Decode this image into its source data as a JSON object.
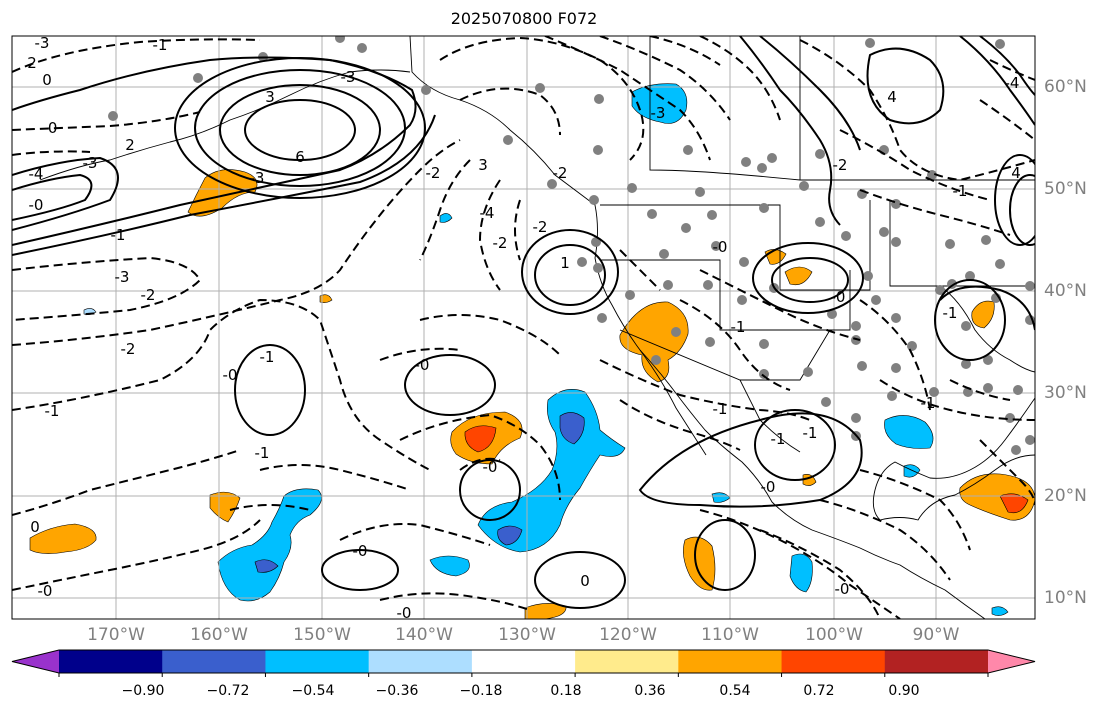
{
  "title": "2025070800 F072",
  "longitude_labels": [
    "170°W",
    "160°W",
    "150°W",
    "140°W",
    "130°W",
    "120°W",
    "110°W",
    "100°W",
    "90°W"
  ],
  "latitude_labels": [
    "60°N",
    "50°N",
    "40°N",
    "30°N",
    "20°N",
    "10°N"
  ],
  "contour_labels": [
    "-3",
    "2",
    "0",
    "-0",
    "-3",
    "-4",
    "6",
    "-0",
    "2",
    "-3",
    "3",
    "-2",
    "-3",
    "-1",
    "-2",
    "-3",
    "-4",
    "4",
    "-1",
    "-0",
    "-1",
    "-0",
    "-2",
    "-2",
    "1",
    "-0",
    "-1",
    "-0",
    "-0",
    "-0",
    "0",
    "-0",
    "0",
    "-1",
    "-1",
    "-1",
    "-2",
    "-0",
    "-0",
    "-1",
    "-1",
    "-0",
    "-2",
    "-1",
    "-1",
    "-1",
    "-2",
    "-3",
    "3",
    "-4",
    "4"
  ],
  "colorbar": {
    "ticks": [
      "−0.90",
      "−0.72",
      "−0.54",
      "−0.36",
      "−0.18",
      "0.18",
      "0.36",
      "0.54",
      "0.72",
      "0.90"
    ],
    "colors": [
      "#9932CC",
      "#00008B",
      "#3A5FCD",
      "#00BFFF",
      "#ADDEFF",
      "#FFFFFF",
      "#FFEB8C",
      "#FFA500",
      "#FF4500",
      "#B22222",
      "#FF88AA"
    ]
  },
  "map_colors": {
    "coast": "#000000",
    "grid": "#b0b0b0",
    "stations": "#808080",
    "contour": "#000000"
  }
}
